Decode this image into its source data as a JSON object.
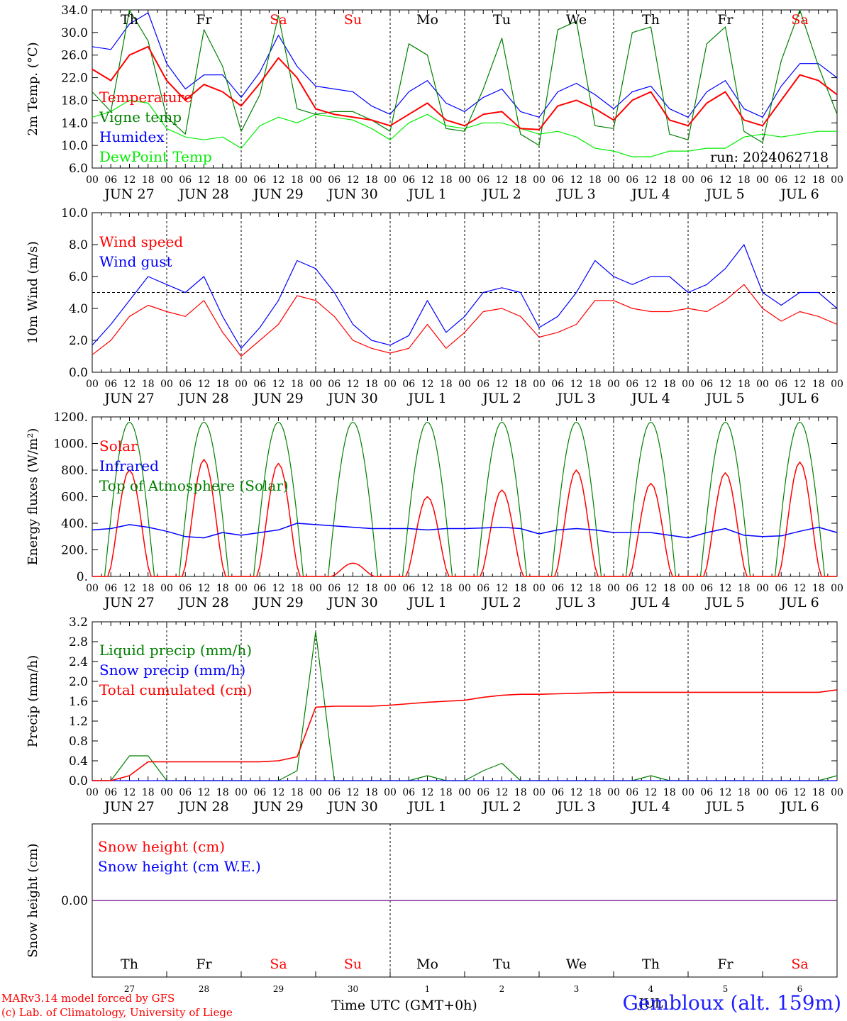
{
  "chart_data": [
    {
      "type": "line",
      "ylabel": "2m Temp. (°C)",
      "ylim": [
        6.0,
        34.0
      ],
      "yticks": [
        "6.0",
        "10.0",
        "14.0",
        "18.0",
        "22.0",
        "26.0",
        "30.0",
        "34.0"
      ],
      "run_label": "run: 2024062718",
      "x": [
        0,
        6,
        12,
        18,
        24,
        30,
        36,
        42,
        48,
        54,
        60,
        66,
        72,
        78,
        84,
        90,
        96,
        102,
        108,
        114,
        120,
        126,
        132,
        138,
        144,
        150,
        156,
        162,
        168,
        174,
        180,
        186,
        192,
        198,
        204,
        210,
        216,
        222,
        228,
        234,
        240
      ],
      "series": [
        {
          "name": "Temperature",
          "color": "#ff0000",
          "values": [
            23.5,
            21.5,
            26.0,
            27.5,
            21.5,
            18.0,
            20.8,
            19.5,
            17.0,
            21.0,
            25.5,
            22.0,
            16.5,
            15.5,
            15.0,
            14.5,
            13.5,
            15.5,
            17.5,
            14.5,
            13.5,
            15.5,
            16.0,
            13.0,
            12.8,
            17.0,
            18.0,
            16.5,
            14.5,
            18.0,
            19.5,
            14.5,
            13.5,
            17.5,
            19.5,
            14.5,
            13.5,
            18.0,
            22.5,
            21.5,
            19.0
          ]
        },
        {
          "name": "Vigne temp",
          "color": "#008000",
          "values": [
            19.5,
            16.0,
            34.0,
            28.5,
            15.0,
            12.0,
            30.5,
            24.0,
            12.5,
            19.0,
            33.0,
            16.5,
            15.5,
            16.0,
            16.0,
            14.5,
            12.5,
            28.0,
            26.0,
            13.0,
            12.5,
            20.0,
            29.0,
            12.0,
            10.0,
            30.5,
            32.0,
            13.5,
            13.0,
            30.0,
            31.0,
            12.0,
            11.0,
            28.0,
            31.0,
            12.5,
            10.5,
            25.0,
            34.0,
            24.0,
            15.5
          ]
        },
        {
          "name": "Humidex",
          "color": "#0000ff",
          "values": [
            27.5,
            27.0,
            31.5,
            33.5,
            24.5,
            20.0,
            22.5,
            22.5,
            18.5,
            23.0,
            29.5,
            24.0,
            20.5,
            20.0,
            19.5,
            17.0,
            15.5,
            19.5,
            21.5,
            17.5,
            16.0,
            18.5,
            20.0,
            16.0,
            15.0,
            19.5,
            21.0,
            19.0,
            16.5,
            19.5,
            20.5,
            16.5,
            15.0,
            19.5,
            21.5,
            16.5,
            15.0,
            20.5,
            24.5,
            24.5,
            22.0
          ]
        },
        {
          "name": "DewPoint Temp",
          "color": "#00ee00",
          "values": [
            15.0,
            16.0,
            18.0,
            17.5,
            13.0,
            11.5,
            11.0,
            11.5,
            9.5,
            13.5,
            15.0,
            14.0,
            15.5,
            15.0,
            14.5,
            13.0,
            11.0,
            14.0,
            15.5,
            13.5,
            13.0,
            14.0,
            14.0,
            13.0,
            12.0,
            12.5,
            11.5,
            9.5,
            9.0,
            8.0,
            8.0,
            9.0,
            9.0,
            9.5,
            9.5,
            11.5,
            12.0,
            11.5,
            12.0,
            12.5,
            12.5
          ]
        }
      ]
    },
    {
      "type": "line",
      "ylabel": "10m Wind (m/s)",
      "ylim": [
        0.0,
        10.0
      ],
      "yticks": [
        "0.0",
        "2.0",
        "4.0",
        "6.0",
        "8.0",
        "10.0"
      ],
      "reference_line": 5.0,
      "x": [
        0,
        6,
        12,
        18,
        24,
        30,
        36,
        42,
        48,
        54,
        60,
        66,
        72,
        78,
        84,
        90,
        96,
        102,
        108,
        114,
        120,
        126,
        132,
        138,
        144,
        150,
        156,
        162,
        168,
        174,
        180,
        186,
        192,
        198,
        204,
        210,
        216,
        222,
        228,
        234,
        240
      ],
      "series": [
        {
          "name": "Wind speed",
          "color": "#ff0000",
          "values": [
            1.1,
            2.0,
            3.5,
            4.2,
            3.8,
            3.5,
            4.5,
            2.5,
            1.0,
            2.0,
            3.0,
            4.8,
            4.5,
            3.5,
            2.0,
            1.5,
            1.2,
            1.5,
            3.0,
            1.5,
            2.5,
            3.8,
            4.0,
            3.5,
            2.2,
            2.5,
            3.0,
            4.5,
            4.5,
            4.0,
            3.8,
            3.8,
            4.0,
            3.8,
            4.5,
            5.5,
            4.0,
            3.2,
            3.8,
            3.5,
            3.0
          ]
        },
        {
          "name": "Wind gust",
          "color": "#0000ff",
          "values": [
            1.7,
            3.0,
            4.5,
            6.0,
            5.5,
            5.0,
            6.0,
            3.5,
            1.5,
            2.8,
            4.5,
            7.0,
            6.5,
            5.0,
            3.0,
            2.0,
            1.7,
            2.3,
            4.5,
            2.5,
            3.5,
            5.0,
            5.3,
            5.0,
            2.8,
            3.5,
            5.0,
            7.0,
            6.0,
            5.5,
            6.0,
            6.0,
            5.0,
            5.5,
            6.5,
            8.0,
            5.0,
            4.2,
            5.0,
            5.0,
            4.0
          ]
        }
      ]
    },
    {
      "type": "line",
      "ylabel": "Energy fluxes (W/m²)",
      "ylim": [
        0,
        1200
      ],
      "yticks": [
        "0.",
        "200.",
        "400.",
        "600.",
        "800.",
        "1000.",
        "1200."
      ],
      "x_step_hours": 6,
      "series": [
        {
          "name": "Solar",
          "color": "#ff0000",
          "values": [
            0,
            280,
            800,
            220,
            0,
            330,
            880,
            340,
            0,
            280,
            850,
            180,
            0,
            50,
            100,
            70,
            0,
            200,
            600,
            80,
            0,
            250,
            650,
            130,
            0,
            500,
            800,
            350,
            0,
            450,
            700,
            160,
            0,
            250,
            780,
            200,
            0,
            380,
            860,
            300,
            0
          ]
        },
        {
          "name": "Infrared",
          "color": "#0000ff",
          "values": [
            350,
            360,
            390,
            370,
            340,
            300,
            290,
            330,
            310,
            330,
            350,
            400,
            390,
            380,
            370,
            360,
            360,
            360,
            350,
            360,
            360,
            365,
            370,
            360,
            320,
            350,
            360,
            350,
            330,
            330,
            330,
            310,
            290,
            330,
            360,
            310,
            300,
            305,
            340,
            370,
            330
          ]
        },
        {
          "name": "Top of Atmosphere (Solar)",
          "color": "#008000",
          "values": "diurnal"
        }
      ]
    },
    {
      "type": "line",
      "ylabel": "Precip (mm/h)",
      "ylim": [
        0.0,
        3.2
      ],
      "yticks": [
        "0.0",
        "0.4",
        "0.8",
        "1.2",
        "1.6",
        "2.0",
        "2.4",
        "2.8",
        "3.2"
      ],
      "x_step_hours": 6,
      "series": [
        {
          "name": "Liquid precip (mm/h)",
          "color": "#008000",
          "values": [
            0,
            0,
            0.5,
            0.5,
            0,
            0,
            0,
            0,
            0,
            0,
            0,
            0.2,
            3.0,
            0,
            0,
            0,
            0,
            0,
            0.1,
            0,
            0,
            0.2,
            0.35,
            0,
            0,
            0,
            0,
            0,
            0,
            0,
            0.1,
            0,
            0,
            0,
            0,
            0,
            0,
            0,
            0,
            0,
            0.1
          ]
        },
        {
          "name": "Snow precip (mm/h)",
          "color": "#0000ff",
          "values": [
            0,
            0,
            0,
            0,
            0,
            0,
            0,
            0,
            0,
            0,
            0,
            0,
            0,
            0,
            0,
            0,
            0,
            0,
            0,
            0,
            0,
            0,
            0,
            0,
            0,
            0,
            0,
            0,
            0,
            0,
            0,
            0,
            0,
            0,
            0,
            0,
            0,
            0,
            0,
            0,
            0
          ]
        },
        {
          "name": "Total cumulated (cm)",
          "color": "#ff0000",
          "values": [
            0,
            0,
            0.1,
            0.38,
            0.38,
            0.38,
            0.38,
            0.38,
            0.38,
            0.38,
            0.4,
            0.48,
            1.48,
            1.5,
            1.5,
            1.5,
            1.52,
            1.55,
            1.58,
            1.6,
            1.62,
            1.68,
            1.72,
            1.74,
            1.74,
            1.75,
            1.76,
            1.77,
            1.78,
            1.78,
            1.78,
            1.78,
            1.78,
            1.78,
            1.78,
            1.78,
            1.78,
            1.78,
            1.78,
            1.78,
            1.83
          ]
        }
      ]
    },
    {
      "type": "line",
      "ylabel": "Snow height (cm)",
      "yticks": [
        "0.00"
      ],
      "series": [
        {
          "name": "Snow height (cm)",
          "color": "#ff0000",
          "values": [
            0,
            0
          ]
        },
        {
          "name": "Snow height (cm W.E.)",
          "color": "#0000ff",
          "values": [
            0,
            0
          ]
        }
      ]
    }
  ],
  "hour_ticks": [
    "00",
    "06",
    "12",
    "18"
  ],
  "date_labels": [
    "JUN 27",
    "JUN 28",
    "JUN 29",
    "JUN 30",
    "JUL  1",
    "JUL  2",
    "JUL  3",
    "JUL  4",
    "JUL  5",
    "JUL  6"
  ],
  "weekdays": [
    "Th",
    "Fr",
    "Sa",
    "Su",
    "Mo",
    "Tu",
    "We",
    "Th",
    "Fr",
    "Sa"
  ],
  "weekday_colors": [
    "#000000",
    "#000000",
    "#ff0000",
    "#ff0000",
    "#000000",
    "#000000",
    "#000000",
    "#000000",
    "#000000",
    "#ff0000"
  ],
  "day_numbers": [
    "27",
    "28",
    "29",
    "30",
    "1",
    "2",
    "3",
    "4",
    "5",
    "6"
  ],
  "month_label": "JUL",
  "xlabel": "Time UTC (GMT+0h)",
  "footer": {
    "credit_line1": "MARv3.14 model forced by GFS",
    "credit_line2": "(c) Lab. of Climatology, University of Liege",
    "location": "Gembloux (alt. 159m)"
  }
}
